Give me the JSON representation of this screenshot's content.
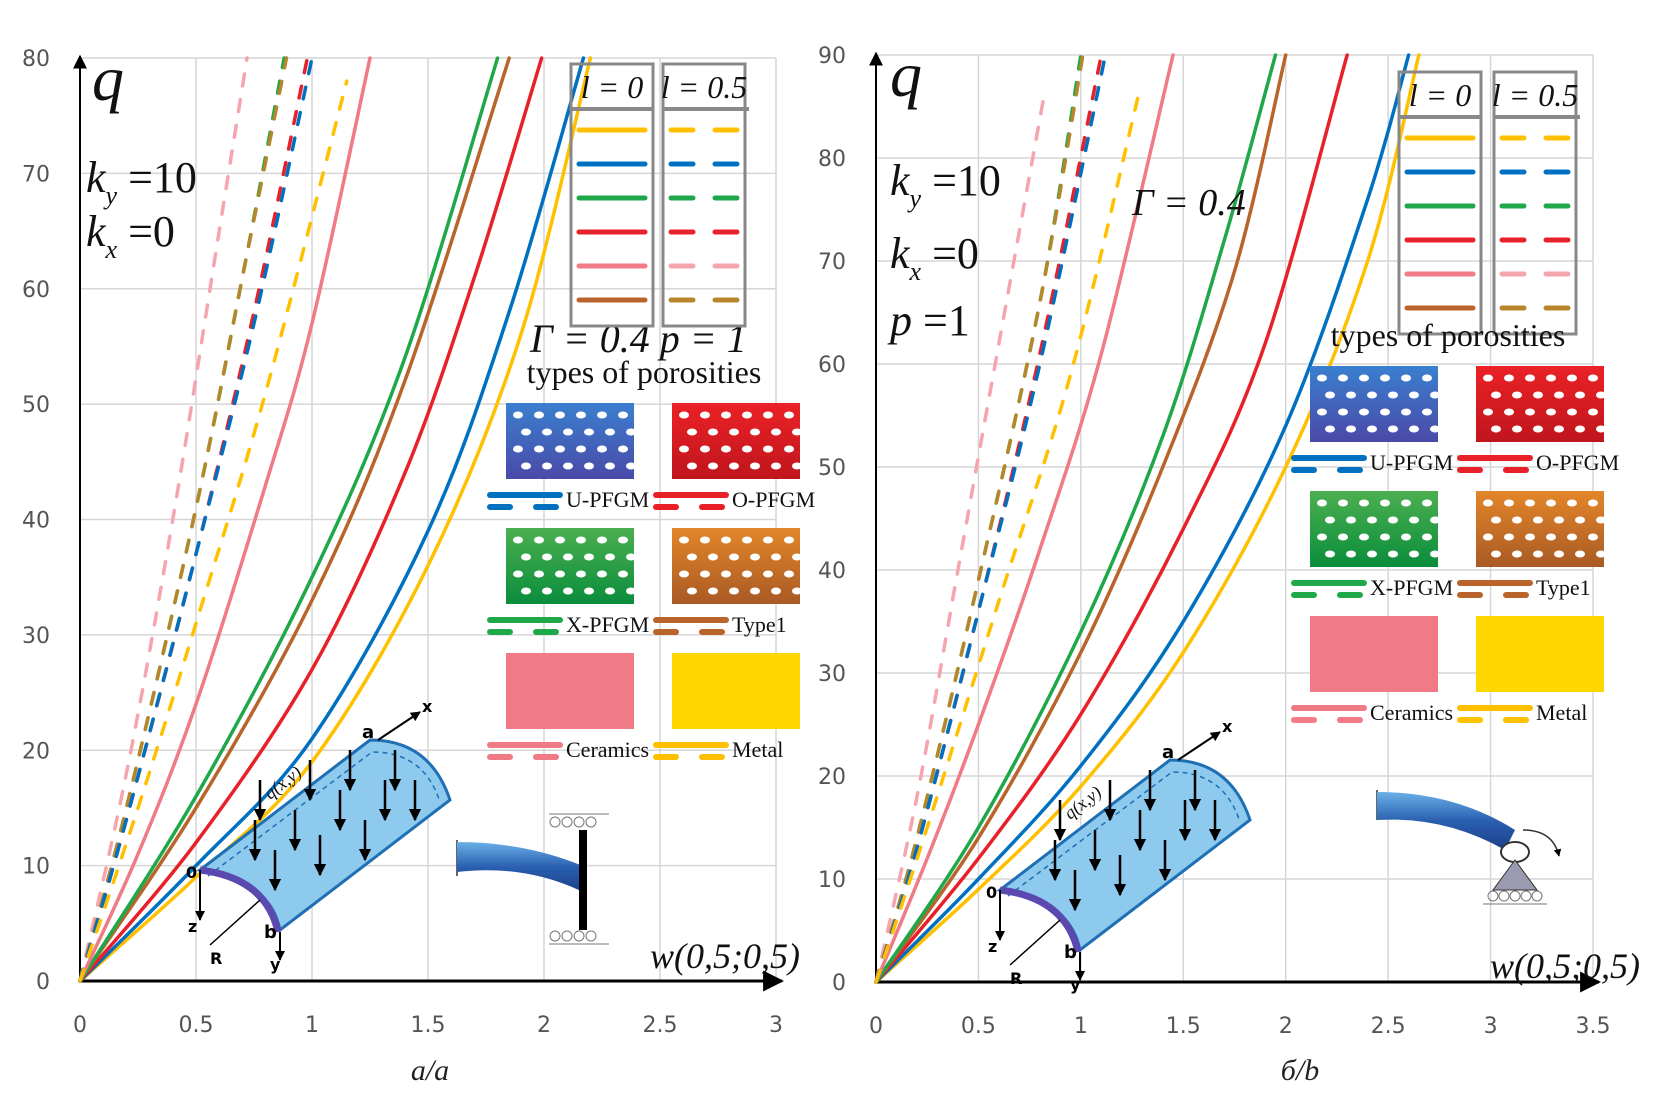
{
  "figure": {
    "captions": [
      "a/a",
      "б/b"
    ]
  },
  "legend_common": {
    "solid_header": "l = 0",
    "dashed_header": "l = 0.5",
    "types_title": "types of porosities",
    "types": [
      {
        "name": "U-PFGM",
        "color": "#0070C0",
        "swatch": [
          "#3a7fcf",
          "#4a4aa8"
        ]
      },
      {
        "name": "O-PFGM",
        "color": "#E8202A",
        "swatch": [
          "#ea2226",
          "#c0151d"
        ]
      },
      {
        "name": "X-PFGM",
        "color": "#1FA84A",
        "swatch": [
          "#4caf50",
          "#0a8d3c"
        ]
      },
      {
        "name": "Type1",
        "color": "#B8642A",
        "swatch": [
          "#e3862a",
          "#a95a24"
        ]
      },
      {
        "name": "Ceramics",
        "color": "#F07A86",
        "swatch": [
          "#f07a86",
          "#f07a86"
        ]
      },
      {
        "name": "Metal",
        "color": "#FFC000",
        "swatch": [
          "#ffd700",
          "#ffd700"
        ]
      }
    ],
    "legend_order": [
      {
        "series": "Metal",
        "solid": "#FFC000",
        "dashed": "#FFC000"
      },
      {
        "series": "U-PFGM",
        "solid": "#0070C0",
        "dashed": "#0070C0"
      },
      {
        "series": "X-PFGM",
        "solid": "#1FA84A",
        "dashed": "#1FA84A"
      },
      {
        "series": "O-PFGM",
        "solid": "#E8202A",
        "dashed": "#E8202A"
      },
      {
        "series": "Ceramics",
        "solid": "#F07A86",
        "dashed": "#F4A5AE"
      },
      {
        "series": "Type1",
        "solid": "#B8642A",
        "dashed": "#B8862A"
      }
    ],
    "diagram_labels": {
      "a": "a",
      "x": "x",
      "o": "0",
      "z": "z",
      "R": "R",
      "b": "b",
      "y": "y",
      "load": "q(x,y)"
    }
  },
  "chart_data": [
    {
      "type": "line",
      "title": "",
      "xlabel": "w(0,5;0,5)",
      "ylabel": "q",
      "xlim": [
        0,
        3
      ],
      "ylim": [
        0,
        80
      ],
      "xticks": [
        "0",
        "0.5",
        "1",
        "1.5",
        "2",
        "2.5",
        "3"
      ],
      "yticks": [
        "0",
        "10",
        "20",
        "30",
        "40",
        "50",
        "60",
        "70",
        "80"
      ],
      "grid": true,
      "annotations": [
        "k_y = 10",
        "k_x = 0",
        "Γ = 0.4",
        "p = 1"
      ],
      "legend_placement": "top-right",
      "support": "clamped-sliding",
      "series": [
        {
          "name": "Metal, l=0",
          "style": "solid",
          "color": "#FFC000",
          "x": [
            0,
            0.5,
            1.0,
            1.5,
            1.9,
            2.2
          ],
          "y": [
            0,
            9,
            19,
            36,
            56,
            80
          ]
        },
        {
          "name": "U-PFGM, l=0",
          "style": "solid",
          "color": "#0070C0",
          "x": [
            0,
            0.5,
            1.0,
            1.5,
            1.85,
            2.17
          ],
          "y": [
            0,
            10,
            21,
            39,
            58,
            80
          ]
        },
        {
          "name": "O-PFGM, l=0",
          "style": "solid",
          "color": "#E8202A",
          "x": [
            0,
            0.5,
            1.0,
            1.4,
            1.7,
            1.99
          ],
          "y": [
            0,
            12,
            27,
            44,
            61,
            80
          ]
        },
        {
          "name": "Type1, l=0",
          "style": "solid",
          "color": "#B8642A",
          "x": [
            0,
            0.5,
            1.0,
            1.4,
            1.85
          ],
          "y": [
            0,
            15,
            33,
            52,
            80
          ]
        },
        {
          "name": "X-PFGM, l=0",
          "style": "solid",
          "color": "#1FA84A",
          "x": [
            0,
            0.5,
            1.0,
            1.4,
            1.8
          ],
          "y": [
            0,
            16,
            35,
            54,
            80
          ]
        },
        {
          "name": "Ceramics, l=0",
          "style": "solid",
          "color": "#F07A86",
          "x": [
            0,
            0.25,
            0.5,
            0.8,
            1.0,
            1.25
          ],
          "y": [
            0,
            11,
            24,
            43,
            57,
            80
          ]
        },
        {
          "name": "Ceramics, l=0.5",
          "style": "dashed",
          "color": "#F4A5AE",
          "x": [
            0,
            0.2,
            0.4,
            0.6,
            0.72
          ],
          "y": [
            0,
            18,
            40,
            65,
            80
          ]
        },
        {
          "name": "X-PFGM, l=0.5",
          "style": "dashed",
          "color": "#1FA84A",
          "x": [
            0,
            0.2,
            0.5,
            0.7,
            0.88
          ],
          "y": [
            0,
            15,
            41,
            61,
            80
          ]
        },
        {
          "name": "Type1, l=0.5",
          "style": "dashed",
          "color": "#B8862A",
          "x": [
            0,
            0.2,
            0.5,
            0.7,
            0.89
          ],
          "y": [
            0,
            15,
            41,
            61,
            80
          ]
        },
        {
          "name": "O-PFGM, l=0.5",
          "style": "dashed",
          "color": "#E8202A",
          "x": [
            0,
            0.2,
            0.5,
            0.75,
            0.98
          ],
          "y": [
            0,
            14,
            37,
            58,
            80
          ]
        },
        {
          "name": "U-PFGM, l=0.5",
          "style": "dashed",
          "color": "#0070C0",
          "x": [
            0,
            0.2,
            0.5,
            0.75,
            1.0
          ],
          "y": [
            0,
            14,
            37,
            57,
            80
          ]
        },
        {
          "name": "Metal, l=0.5",
          "style": "dashed",
          "color": "#FFC000",
          "x": [
            0,
            0.25,
            0.5,
            0.8,
            1.15
          ],
          "y": [
            0,
            15,
            31,
            51,
            78
          ]
        }
      ]
    },
    {
      "type": "line",
      "title": "",
      "xlabel": "w(0,5;0,5)",
      "ylabel": "q",
      "xlim": [
        0,
        3.5
      ],
      "ylim": [
        0,
        90
      ],
      "xticks": [
        "0",
        "0.5",
        "1",
        "1.5",
        "2",
        "2.5",
        "3",
        "3.5"
      ],
      "yticks": [
        "0",
        "10",
        "20",
        "30",
        "40",
        "50",
        "60",
        "70",
        "80",
        "90"
      ],
      "grid": true,
      "annotations": [
        "k_y = 10",
        "k_x = 0",
        "p = 1",
        "Γ = 0.4"
      ],
      "legend_placement": "top-right",
      "support": "hinged-sliding",
      "series": [
        {
          "name": "Metal, l=0",
          "style": "solid",
          "color": "#FFC000",
          "x": [
            0,
            0.5,
            1.0,
            1.5,
            2.0,
            2.4,
            2.65
          ],
          "y": [
            0,
            9,
            19,
            32,
            50,
            70,
            90
          ]
        },
        {
          "name": "U-PFGM, l=0",
          "style": "solid",
          "color": "#0070C0",
          "x": [
            0,
            0.5,
            1.0,
            1.5,
            2.0,
            2.4,
            2.6
          ],
          "y": [
            0,
            10,
            21,
            35,
            54,
            76,
            90
          ]
        },
        {
          "name": "O-PFGM, l=0",
          "style": "solid",
          "color": "#E8202A",
          "x": [
            0,
            0.5,
            1.0,
            1.5,
            1.9,
            2.3
          ],
          "y": [
            0,
            12,
            26,
            44,
            62,
            90
          ]
        },
        {
          "name": "Type1, l=0",
          "style": "solid",
          "color": "#B8642A",
          "x": [
            0,
            0.5,
            1.0,
            1.4,
            1.75,
            2.0
          ],
          "y": [
            0,
            14,
            32,
            50,
            69,
            90
          ]
        },
        {
          "name": "X-PFGM, l=0",
          "style": "solid",
          "color": "#1FA84A",
          "x": [
            0,
            0.5,
            1.0,
            1.4,
            1.7,
            1.95
          ],
          "y": [
            0,
            15,
            34,
            53,
            72,
            90
          ]
        },
        {
          "name": "Ceramics, l=0",
          "style": "solid",
          "color": "#F07A86",
          "x": [
            0,
            0.25,
            0.5,
            0.8,
            1.1,
            1.45
          ],
          "y": [
            0,
            12,
            25,
            42,
            61,
            90
          ]
        },
        {
          "name": "Ceramics, l=0.5",
          "style": "dashed",
          "color": "#F4A5AE",
          "x": [
            0,
            0.2,
            0.4,
            0.6,
            0.82
          ],
          "y": [
            0,
            18,
            40,
            62,
            86
          ]
        },
        {
          "name": "X-PFGM, l=0.5",
          "style": "dashed",
          "color": "#1FA84A",
          "x": [
            0,
            0.2,
            0.5,
            0.8,
            1.0
          ],
          "y": [
            0,
            14,
            39,
            66,
            90
          ]
        },
        {
          "name": "Type1, l=0.5",
          "style": "dashed",
          "color": "#B8862A",
          "x": [
            0,
            0.2,
            0.5,
            0.8,
            1.01
          ],
          "y": [
            0,
            14,
            39,
            66,
            90
          ]
        },
        {
          "name": "O-PFGM, l=0.5",
          "style": "dashed",
          "color": "#E8202A",
          "x": [
            0,
            0.2,
            0.5,
            0.8,
            1.1
          ],
          "y": [
            0,
            13,
            36,
            61,
            90
          ]
        },
        {
          "name": "U-PFGM, l=0.5",
          "style": "dashed",
          "color": "#0070C0",
          "x": [
            0,
            0.2,
            0.5,
            0.8,
            1.12
          ],
          "y": [
            0,
            13,
            36,
            60,
            90
          ]
        },
        {
          "name": "Metal, l=0.5",
          "style": "dashed",
          "color": "#FFC000",
          "x": [
            0,
            0.25,
            0.6,
            0.95,
            1.28
          ],
          "y": [
            0,
            15,
            37,
            59,
            86
          ]
        }
      ]
    }
  ]
}
